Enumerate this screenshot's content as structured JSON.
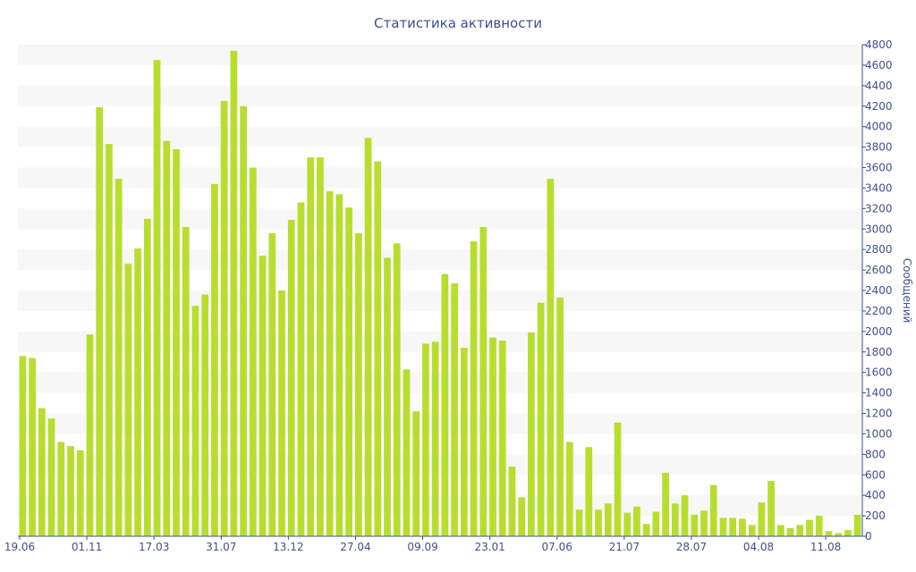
{
  "chart_data": {
    "type": "bar",
    "title": "Статистика активности",
    "ylabel": "Сообщений",
    "ylim": [
      0,
      4800
    ],
    "y_tick_step": 200,
    "grid": "alternating horizontal bands",
    "y_axis_side": "right",
    "bar_color": "#b7de2e",
    "x_tick_labels": [
      "19.06",
      "01.11",
      "17.03",
      "31.07",
      "13.12",
      "27.04",
      "09.09",
      "23.01",
      "07.06",
      "21.07",
      "28.07",
      "04.08",
      "11.08"
    ],
    "x_tick_positions": [
      0,
      7,
      14,
      21,
      28,
      35,
      42,
      49,
      56,
      63,
      70,
      77,
      84
    ],
    "values": [
      1760,
      1740,
      1250,
      1150,
      920,
      880,
      840,
      1970,
      4190,
      3830,
      3490,
      2660,
      2810,
      3100,
      4650,
      3860,
      3780,
      3020,
      2250,
      2360,
      3440,
      4250,
      4740,
      4200,
      3600,
      2740,
      2960,
      2400,
      3090,
      3260,
      3700,
      3700,
      3370,
      3340,
      3210,
      2960,
      3890,
      3660,
      2720,
      2860,
      1630,
      1220,
      1880,
      1900,
      2560,
      2470,
      1840,
      2880,
      3020,
      1940,
      1910,
      680,
      380,
      1990,
      2280,
      3490,
      2330,
      920,
      260,
      870,
      260,
      320,
      1110,
      230,
      290,
      120,
      240,
      620,
      320,
      400,
      210,
      250,
      500,
      180,
      180,
      170,
      110,
      330,
      540,
      110,
      80,
      110,
      160,
      200,
      50,
      30,
      60,
      210
    ]
  }
}
